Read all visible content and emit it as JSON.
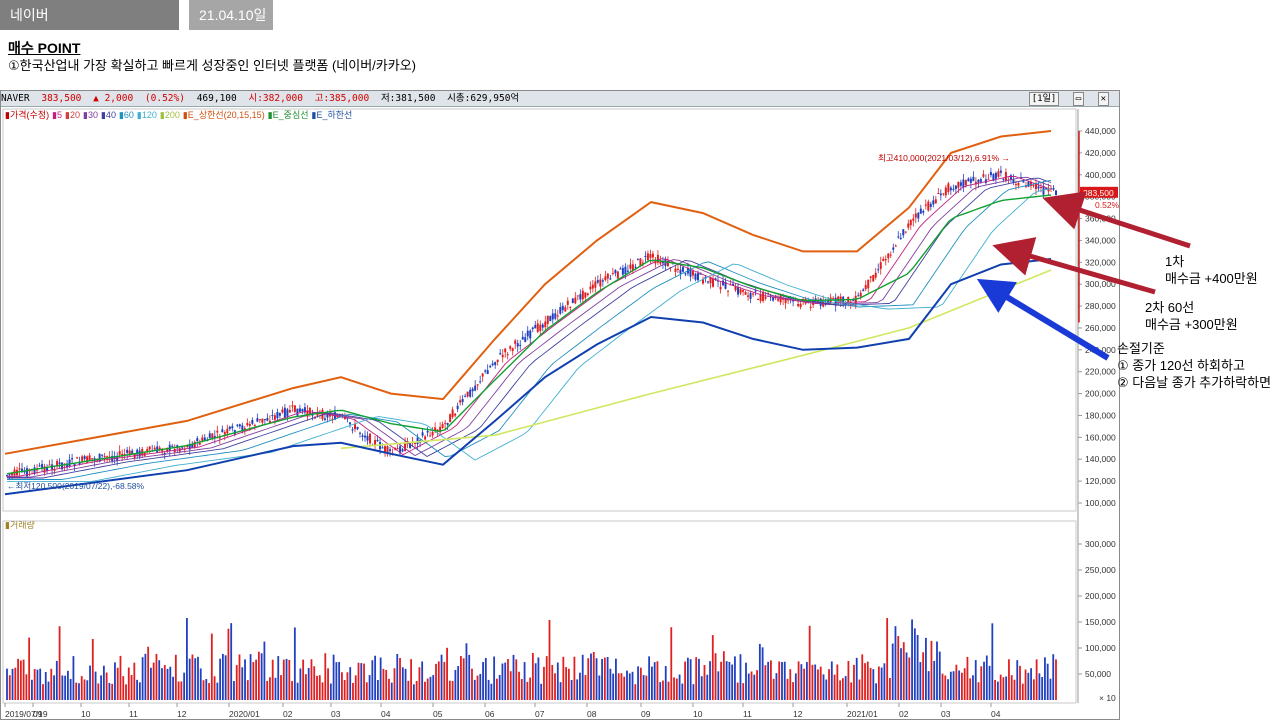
{
  "header": {
    "title": "네이버",
    "date": "21.04.10일"
  },
  "buy_point": {
    "heading": "매수 POINT",
    "line1": "①한국산업내 가장 확실하고 빠르게 성장중인 인터넷 플랫폼 (네이버/카카오)"
  },
  "chart_window": {
    "info": {
      "ticker": "NAVER",
      "price": "383,500",
      "change": "▲ 2,000",
      "pct": "(0.52%)",
      "volume": "469,100",
      "open": "시:382,000",
      "high": "고:385,000",
      "low": "저:381,500",
      "mktcap": "시총:629,950억"
    },
    "period_button": "[1일]",
    "legend": [
      {
        "text": "가격(수정)",
        "color": "#c00000"
      },
      {
        "text": "5",
        "color": "#c02080"
      },
      {
        "text": "20",
        "color": "#d04040"
      },
      {
        "text": "30",
        "color": "#8040a0"
      },
      {
        "text": "40",
        "color": "#4040a0"
      },
      {
        "text": "60",
        "color": "#2090c0"
      },
      {
        "text": "120",
        "color": "#40b0d0"
      },
      {
        "text": "200",
        "color": "#a0c040"
      },
      {
        "text": "E_상한선(20,15,15)",
        "color": "#d05010"
      },
      {
        "text": "E_중심선",
        "color": "#209030"
      },
      {
        "text": "E_하한선",
        "color": "#2050a0"
      }
    ],
    "high_label": "최고410,000(2021/03/12),6.91%",
    "low_label": "최저120,500(2019/07/22),-68.58%",
    "price_tag": "383,500",
    "pct_tag": "0.52%",
    "volume_legend": "거래량",
    "volume_unit": "× 10",
    "colors": {
      "up": "#e02020",
      "down": "#2040c0",
      "env_upper": "#e06010",
      "env_mid": "#10a030",
      "env_lower": "#1040b0",
      "ma200": "#d0e860"
    }
  },
  "annotations": {
    "first": {
      "line1": "1차",
      "line2": "매수금 +400만원"
    },
    "second": {
      "line1": "2차 60선",
      "line2": "매수금 +300만원"
    },
    "stop": {
      "line1": "손절기준",
      "line2": "① 종가 120선 하회하고",
      "line3": "② 다음날 종가 추가하락하면"
    }
  },
  "chart_data": {
    "type": "line",
    "price_axis": {
      "ticks": [
        100000,
        120000,
        140000,
        160000,
        180000,
        200000,
        220000,
        240000,
        260000,
        280000,
        300000,
        320000,
        340000,
        360000,
        380000,
        400000,
        420000,
        440000
      ],
      "tick_labels": [
        "100,000",
        "120,000",
        "140,000",
        "160,000",
        "180,000",
        "200,000",
        "220,000",
        "240,000",
        "260,000",
        "280,000",
        "300,000",
        "320,000",
        "340,000",
        "360,000",
        "380,000",
        "400,000",
        "420,000",
        "440,000"
      ]
    },
    "volume_axis": {
      "ticks": [
        50000,
        100000,
        150000,
        200000,
        250000,
        300000
      ],
      "tick_labels": [
        "50,000",
        "100,000",
        "150,000",
        "200,000",
        "250,000",
        "300,000"
      ]
    },
    "x_tick_labels": [
      "2019/07/19",
      "09",
      "10",
      "11",
      "12",
      "2020/01",
      "02",
      "03",
      "04",
      "05",
      "06",
      "07",
      "08",
      "09",
      "10",
      "11",
      "12",
      "2021/01",
      "02",
      "03",
      "04"
    ],
    "price_series": [
      {
        "date": "2019/07",
        "value": 125000
      },
      {
        "date": "2019/09",
        "value": 140000
      },
      {
        "date": "2019/11",
        "value": 152000
      },
      {
        "date": "2020/01",
        "value": 185000
      },
      {
        "date": "2020/02",
        "value": 178000
      },
      {
        "date": "2020/03",
        "value": 145000
      },
      {
        "date": "2020/04",
        "value": 170000
      },
      {
        "date": "2020/05",
        "value": 230000
      },
      {
        "date": "2020/06",
        "value": 265000
      },
      {
        "date": "2020/07",
        "value": 300000
      },
      {
        "date": "2020/08",
        "value": 325000
      },
      {
        "date": "2020/09",
        "value": 305000
      },
      {
        "date": "2020/10",
        "value": 290000
      },
      {
        "date": "2020/11",
        "value": 283000
      },
      {
        "date": "2020/12",
        "value": 285000
      },
      {
        "date": "2021/01",
        "value": 355000
      },
      {
        "date": "2021/02",
        "value": 390000
      },
      {
        "date": "2021/03",
        "value": 400000
      },
      {
        "date": "2021/04",
        "value": 383500
      }
    ],
    "envelope_upper": [
      {
        "date": "2019/07",
        "value": 145000
      },
      {
        "date": "2019/11",
        "value": 175000
      },
      {
        "date": "2020/01",
        "value": 205000
      },
      {
        "date": "2020/02",
        "value": 215000
      },
      {
        "date": "2020/03",
        "value": 200000
      },
      {
        "date": "2020/04",
        "value": 195000
      },
      {
        "date": "2020/05",
        "value": 250000
      },
      {
        "date": "2020/06",
        "value": 300000
      },
      {
        "date": "2020/07",
        "value": 340000
      },
      {
        "date": "2020/08",
        "value": 375000
      },
      {
        "date": "2020/09",
        "value": 365000
      },
      {
        "date": "2020/10",
        "value": 345000
      },
      {
        "date": "2020/11",
        "value": 330000
      },
      {
        "date": "2020/12",
        "value": 330000
      },
      {
        "date": "2021/01",
        "value": 370000
      },
      {
        "date": "2021/02",
        "value": 420000
      },
      {
        "date": "2021/03",
        "value": 435000
      },
      {
        "date": "2021/04",
        "value": 440000
      }
    ],
    "envelope_lower": [
      {
        "date": "2019/07",
        "value": 108000
      },
      {
        "date": "2019/11",
        "value": 130000
      },
      {
        "date": "2020/01",
        "value": 152000
      },
      {
        "date": "2020/02",
        "value": 155000
      },
      {
        "date": "2020/03",
        "value": 145000
      },
      {
        "date": "2020/04",
        "value": 135000
      },
      {
        "date": "2020/05",
        "value": 175000
      },
      {
        "date": "2020/06",
        "value": 215000
      },
      {
        "date": "2020/07",
        "value": 245000
      },
      {
        "date": "2020/08",
        "value": 270000
      },
      {
        "date": "2020/09",
        "value": 265000
      },
      {
        "date": "2020/10",
        "value": 250000
      },
      {
        "date": "2020/11",
        "value": 240000
      },
      {
        "date": "2020/12",
        "value": 242000
      },
      {
        "date": "2021/01",
        "value": 250000
      },
      {
        "date": "2021/02",
        "value": 300000
      },
      {
        "date": "2021/03",
        "value": 318000
      },
      {
        "date": "2021/04",
        "value": 323000
      }
    ],
    "ma200": [
      {
        "date": "2020/02",
        "value": 150000
      },
      {
        "date": "2020/05",
        "value": 162000
      },
      {
        "date": "2020/08",
        "value": 200000
      },
      {
        "date": "2020/11",
        "value": 235000
      },
      {
        "date": "2021/01",
        "value": 260000
      },
      {
        "date": "2021/04",
        "value": 313000
      }
    ]
  }
}
